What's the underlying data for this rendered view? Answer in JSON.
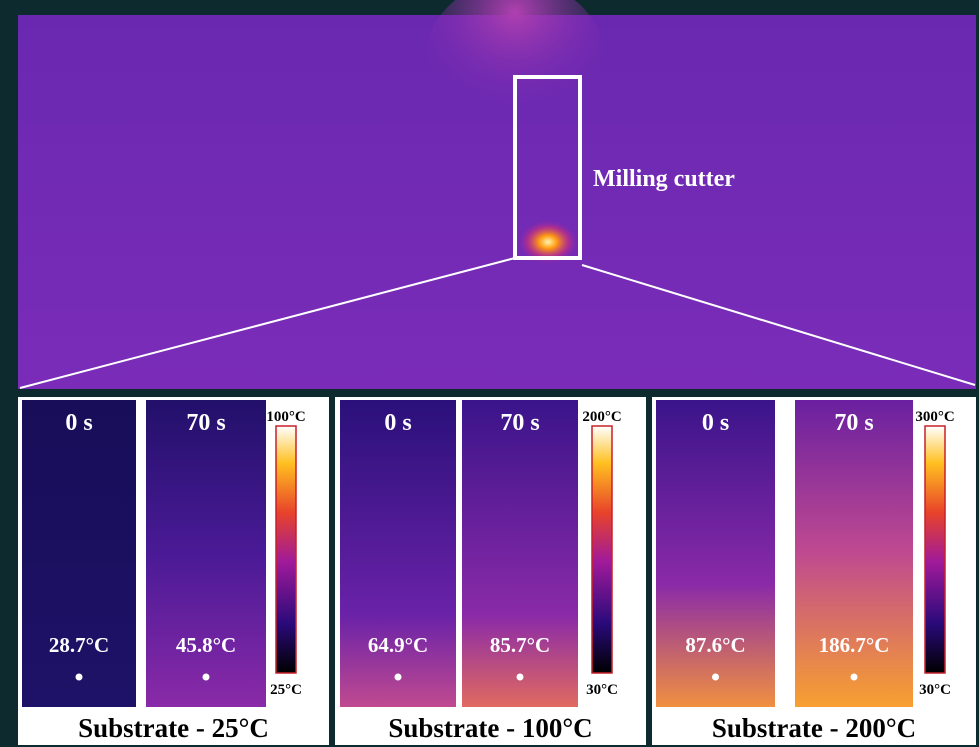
{
  "top": {
    "label": "Milling cutter"
  },
  "panels": [
    {
      "title": "Substrate - 25°C",
      "colorbar": {
        "max": "100°C",
        "min": "25°C"
      },
      "frames": [
        {
          "time": "0 s",
          "temperature": "28.7°C"
        },
        {
          "time": "70 s",
          "temperature": "45.8°C"
        }
      ]
    },
    {
      "title": "Substrate - 100°C",
      "colorbar": {
        "max": "200°C",
        "min": "30°C"
      },
      "frames": [
        {
          "time": "0 s",
          "temperature": "64.9°C"
        },
        {
          "time": "70 s",
          "temperature": "85.7°C"
        }
      ]
    },
    {
      "title": "Substrate - 200°C",
      "colorbar": {
        "max": "300°C",
        "min": "30°C"
      },
      "frames": [
        {
          "time": "0 s",
          "temperature": "87.6°C"
        },
        {
          "time": "70 s",
          "temperature": "186.7°C"
        }
      ]
    }
  ]
}
